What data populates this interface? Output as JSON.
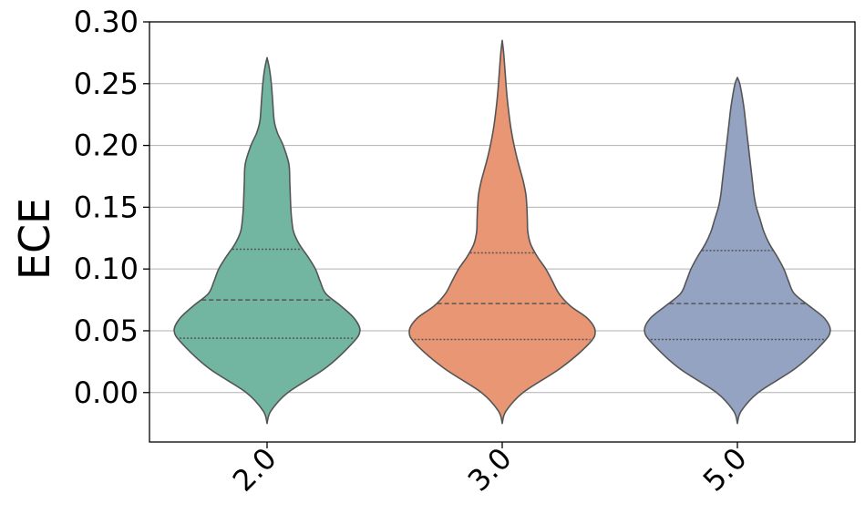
{
  "chart_data": {
    "type": "violin",
    "title": "",
    "xlabel": "",
    "ylabel": "ECE",
    "ylim": [
      -0.04,
      0.3
    ],
    "yticks": [
      "0.00",
      "0.05",
      "0.10",
      "0.15",
      "0.20",
      "0.25",
      "0.30"
    ],
    "grid": "horizontal",
    "categories": [
      "2.0",
      "3.0",
      "5.0"
    ],
    "colors": [
      "#72b6a1",
      "#e99675",
      "#95a3c3"
    ],
    "edge_color": "#555555",
    "violins": [
      {
        "category": "2.0",
        "min": -0.025,
        "max": 0.271,
        "q1": 0.044,
        "median": 0.075,
        "q3": 0.116,
        "profile": [
          [
            -0.025,
            0.0
          ],
          [
            -0.015,
            0.04
          ],
          [
            0.0,
            0.22
          ],
          [
            0.02,
            0.62
          ],
          [
            0.04,
            0.9
          ],
          [
            0.05,
            0.98
          ],
          [
            0.06,
            0.92
          ],
          [
            0.07,
            0.78
          ],
          [
            0.08,
            0.62
          ],
          [
            0.09,
            0.56
          ],
          [
            0.1,
            0.51
          ],
          [
            0.11,
            0.43
          ],
          [
            0.12,
            0.34
          ],
          [
            0.13,
            0.28
          ],
          [
            0.14,
            0.26
          ],
          [
            0.15,
            0.25
          ],
          [
            0.17,
            0.24
          ],
          [
            0.185,
            0.23
          ],
          [
            0.2,
            0.17
          ],
          [
            0.21,
            0.11
          ],
          [
            0.22,
            0.075
          ],
          [
            0.235,
            0.06
          ],
          [
            0.25,
            0.045
          ],
          [
            0.262,
            0.025
          ],
          [
            0.271,
            0.0
          ]
        ]
      },
      {
        "category": "3.0",
        "min": -0.025,
        "max": 0.285,
        "q1": 0.043,
        "median": 0.072,
        "q3": 0.113,
        "profile": [
          [
            -0.025,
            0.0
          ],
          [
            -0.015,
            0.04
          ],
          [
            0.0,
            0.22
          ],
          [
            0.02,
            0.62
          ],
          [
            0.04,
            0.92
          ],
          [
            0.05,
            0.98
          ],
          [
            0.06,
            0.9
          ],
          [
            0.07,
            0.72
          ],
          [
            0.08,
            0.6
          ],
          [
            0.09,
            0.53
          ],
          [
            0.1,
            0.46
          ],
          [
            0.11,
            0.37
          ],
          [
            0.12,
            0.3
          ],
          [
            0.13,
            0.27
          ],
          [
            0.14,
            0.265
          ],
          [
            0.15,
            0.26
          ],
          [
            0.16,
            0.25
          ],
          [
            0.17,
            0.225
          ],
          [
            0.18,
            0.19
          ],
          [
            0.19,
            0.155
          ],
          [
            0.2,
            0.125
          ],
          [
            0.21,
            0.1
          ],
          [
            0.22,
            0.08
          ],
          [
            0.24,
            0.05
          ],
          [
            0.26,
            0.03
          ],
          [
            0.275,
            0.015
          ],
          [
            0.285,
            0.0
          ]
        ]
      },
      {
        "category": "5.0",
        "min": -0.025,
        "max": 0.255,
        "q1": 0.043,
        "median": 0.072,
        "q3": 0.115,
        "profile": [
          [
            -0.025,
            0.0
          ],
          [
            -0.015,
            0.04
          ],
          [
            0.0,
            0.22
          ],
          [
            0.02,
            0.62
          ],
          [
            0.04,
            0.9
          ],
          [
            0.05,
            0.98
          ],
          [
            0.06,
            0.92
          ],
          [
            0.07,
            0.76
          ],
          [
            0.08,
            0.6
          ],
          [
            0.09,
            0.54
          ],
          [
            0.1,
            0.49
          ],
          [
            0.11,
            0.42
          ],
          [
            0.12,
            0.34
          ],
          [
            0.13,
            0.28
          ],
          [
            0.14,
            0.24
          ],
          [
            0.15,
            0.2
          ],
          [
            0.16,
            0.175
          ],
          [
            0.17,
            0.16
          ],
          [
            0.18,
            0.145
          ],
          [
            0.19,
            0.13
          ],
          [
            0.2,
            0.115
          ],
          [
            0.21,
            0.1
          ],
          [
            0.22,
            0.085
          ],
          [
            0.23,
            0.07
          ],
          [
            0.24,
            0.05
          ],
          [
            0.25,
            0.025
          ],
          [
            0.255,
            0.0
          ]
        ]
      }
    ]
  }
}
